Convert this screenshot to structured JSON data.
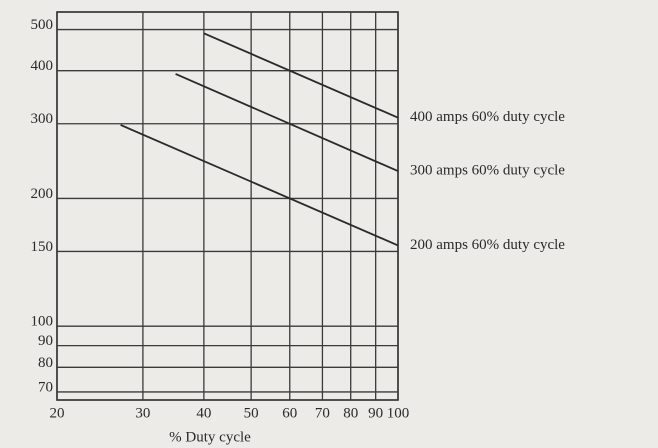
{
  "chart_data": {
    "type": "line",
    "x_label": "% Duty cycle",
    "xscale": "log",
    "yscale": "log",
    "xlim": [
      20,
      100
    ],
    "xticks": [
      20,
      30,
      40,
      50,
      60,
      70,
      80,
      90,
      100
    ],
    "ylim": [
      67,
      550
    ],
    "yticks": [
      70,
      80,
      90,
      100,
      150,
      200,
      300,
      400,
      500
    ],
    "grid": true,
    "series": [
      {
        "name": "400 amps 60% duty cycle",
        "color": "#2a2a2a",
        "x": [
          40,
          100
        ],
        "values": [
          490,
          310
        ]
      },
      {
        "name": "300 amps 60% duty cycle",
        "color": "#2a2a2a",
        "x": [
          35,
          100
        ],
        "values": [
          393,
          232
        ]
      },
      {
        "name": "200 amps 60% duty cycle",
        "color": "#2a2a2a",
        "x": [
          27,
          100
        ],
        "values": [
          298,
          155
        ]
      }
    ]
  }
}
